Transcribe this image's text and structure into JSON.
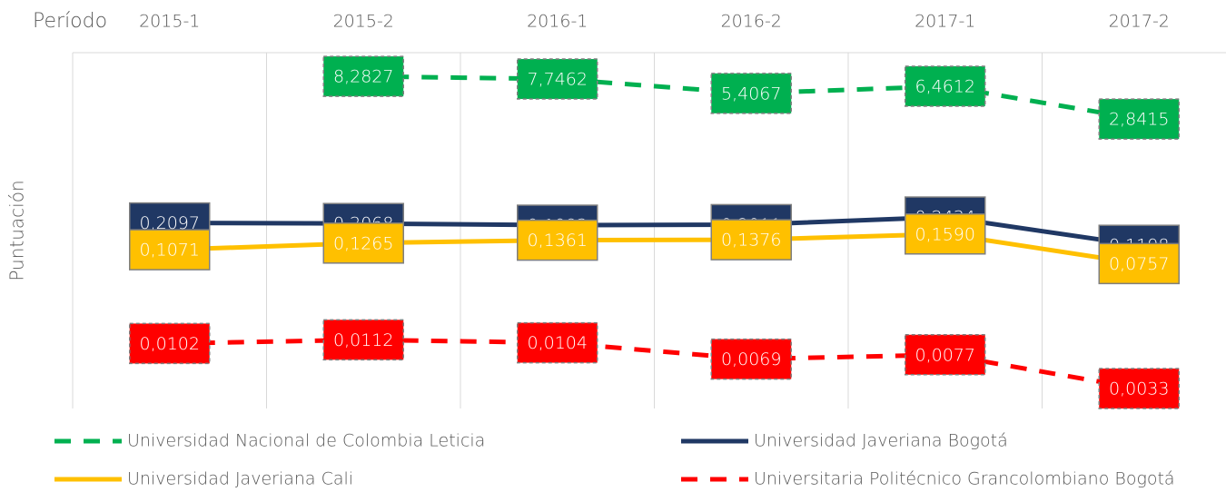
{
  "chart_data": {
    "type": "line",
    "x_label": "Período",
    "y_label": "Puntuación",
    "categories": [
      "2015-1",
      "2015-2",
      "2016-1",
      "2016-2",
      "2017-1",
      "2017-2"
    ],
    "log_y": true,
    "ylim": [
      0.002,
      15
    ],
    "grid": true,
    "series": [
      {
        "name": "Universidad Nacional de Colombia Leticia",
        "color": "#00b050",
        "line_style": "dashed",
        "values": [
          null,
          8.2827,
          7.7462,
          5.4067,
          6.4612,
          2.8415
        ],
        "value_labels": [
          null,
          "8,2827",
          "7,7462",
          "5,4067",
          "6,4612",
          "2,8415"
        ]
      },
      {
        "name": "Universidad Javeriana Bogotá",
        "color": "#203864",
        "line_style": "solid",
        "values": [
          0.2097,
          0.2068,
          0.1983,
          0.2011,
          0.2434,
          0.1198
        ],
        "value_labels": [
          "0,2097",
          "0,2068",
          "0,1983",
          "0,2011",
          "0,2434",
          "0,1198"
        ]
      },
      {
        "name": "Universidad Javeriana Cali",
        "color": "#ffc000",
        "line_style": "solid",
        "values": [
          0.1071,
          0.1265,
          0.1361,
          0.1376,
          0.159,
          0.0757
        ],
        "value_labels": [
          "0,1071",
          "0,1265",
          "0,1361",
          "0,1376",
          "0,1590",
          "0,0757"
        ]
      },
      {
        "name": "Universitaria Politécnico Grancolombiano Bogotá",
        "color": "#ff0000",
        "line_style": "dashed",
        "values": [
          0.0102,
          0.0112,
          0.0104,
          0.0069,
          0.0077,
          0.0033
        ],
        "value_labels": [
          "0,0102",
          "0,0112",
          "0,0104",
          "0,0069",
          "0,0077",
          "0,0033"
        ]
      }
    ]
  }
}
